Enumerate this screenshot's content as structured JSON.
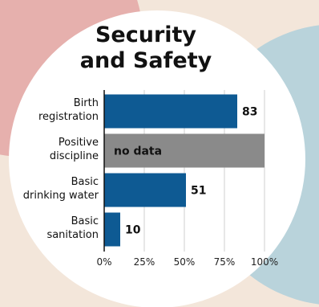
{
  "title_line1": "Security",
  "title_line2": "and Safety",
  "colors": {
    "bar": "#0e5a93",
    "no_data_bar": "#8a8a8a",
    "axis": "#111111",
    "grid": "#cfcfcf",
    "panel": "#ffffff",
    "background": "#f3e6da",
    "decor_red": "#e6b0ad",
    "decor_blue": "#b9d3db"
  },
  "chart_data": {
    "type": "bar",
    "orientation": "horizontal",
    "title": "Security and Safety",
    "categories": [
      [
        "Birth",
        "registration"
      ],
      [
        "Positive",
        "discipline"
      ],
      [
        "Basic",
        "drinking water"
      ],
      [
        "Basic",
        "sanitation"
      ]
    ],
    "values": [
      83,
      null,
      51,
      10
    ],
    "value_labels": [
      "83",
      "no data",
      "51",
      "10"
    ],
    "xlim": [
      0,
      100
    ],
    "xticks": [
      0,
      25,
      50,
      75,
      100
    ],
    "xtick_labels": [
      "0%",
      "25%",
      "50%",
      "75%",
      "100%"
    ],
    "grid": true
  }
}
